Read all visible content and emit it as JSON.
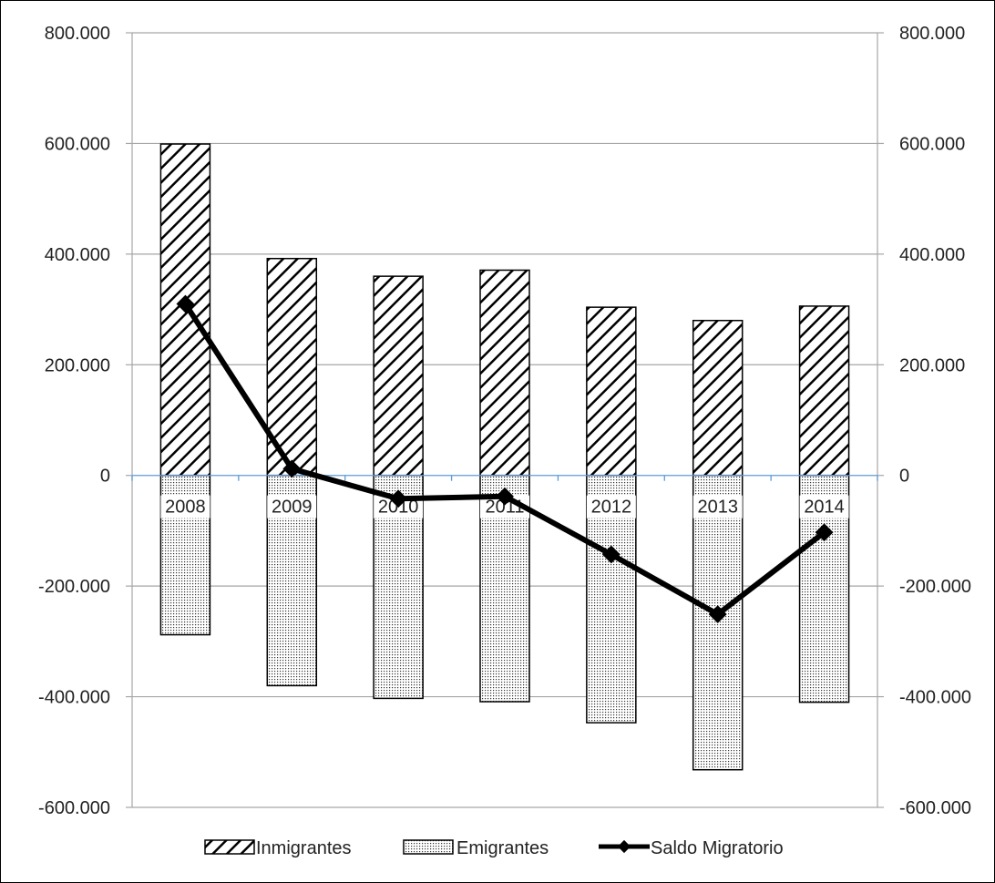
{
  "chart_data": {
    "type": "bar",
    "title": "",
    "xlabel": "",
    "ylabel": "",
    "categories": [
      "2008",
      "2009",
      "2010",
      "2011",
      "2012",
      "2013",
      "2014"
    ],
    "ylim": [
      -600000,
      800000
    ],
    "y_ticks": [
      800000,
      600000,
      400000,
      200000,
      0,
      -200000,
      -400000,
      -600000
    ],
    "y_tick_labels": [
      "800.000",
      "600.000",
      "400.000",
      "200.000",
      "0",
      "-200.000",
      "-400.000",
      "-600.000"
    ],
    "secondary_y_tick_labels": [
      "800.000",
      "600.000",
      "400.000",
      "200.000",
      "0",
      "-200.000",
      "-400.000",
      "-600.000"
    ],
    "grid": true,
    "legend_position": "bottom",
    "series": [
      {
        "name": "Inmigrantes",
        "kind": "bar",
        "pattern": "diagonal-hatch",
        "values": [
          599000,
          392000,
          360000,
          371000,
          304000,
          280000,
          306000
        ]
      },
      {
        "name": "Emigrantes",
        "kind": "bar",
        "pattern": "dotted",
        "values": [
          -288000,
          -380000,
          -403000,
          -409000,
          -447000,
          -532000,
          -410000
        ]
      },
      {
        "name": "Saldo Migratorio",
        "kind": "line",
        "marker": "diamond",
        "values": [
          310000,
          12000,
          -42000,
          -38000,
          -143000,
          -251000,
          -103000
        ]
      }
    ],
    "colors": {
      "line": "#000000",
      "grid": "#a6a6a6",
      "zero_line": "#5b9bd5",
      "bar_stroke": "#000000"
    }
  }
}
